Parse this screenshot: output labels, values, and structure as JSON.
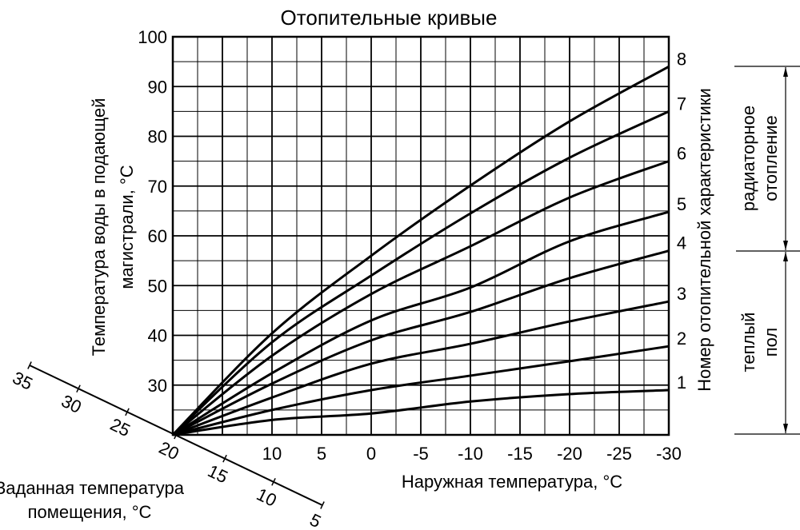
{
  "chart_data": {
    "type": "line",
    "title": "Отопительные кривые",
    "xlabel": "Наружная температура, °C",
    "ylabel_lines": [
      "Температура воды в подающей",
      "магистрали, °C"
    ],
    "xlim": [
      20,
      -30
    ],
    "ylim": [
      20,
      100
    ],
    "grid": true,
    "x_tick_labels": [
      "10",
      "5",
      "0",
      "-5",
      "-10",
      "-15",
      "-20",
      "-25",
      "-30"
    ],
    "x_ticks": [
      10,
      5,
      0,
      -5,
      -10,
      -15,
      -20,
      -25,
      -30
    ],
    "y_tick_labels": [
      "30",
      "40",
      "50",
      "60",
      "70",
      "80",
      "90",
      "100"
    ],
    "y_ticks": [
      30,
      40,
      50,
      60,
      70,
      80,
      90,
      100
    ],
    "x": [
      20,
      10,
      0,
      -10,
      -20,
      -30
    ],
    "series": [
      {
        "name": "1",
        "values": [
          20,
          23,
          24.3,
          26.7,
          28.2,
          29
        ]
      },
      {
        "name": "2",
        "values": [
          20,
          25,
          29,
          31.9,
          34.8,
          37.8
        ]
      },
      {
        "name": "3",
        "values": [
          20,
          27.5,
          34.3,
          38.3,
          42.8,
          46.8
        ]
      },
      {
        "name": "4",
        "values": [
          20,
          30.3,
          39,
          44.7,
          51.5,
          57
        ]
      },
      {
        "name": "5",
        "values": [
          20,
          32.4,
          43,
          49.6,
          58.9,
          64.8
        ]
      },
      {
        "name": "6",
        "values": [
          20,
          35.9,
          48.3,
          57.9,
          67.7,
          75
        ]
      },
      {
        "name": "7",
        "values": [
          20,
          38.6,
          52,
          64.5,
          75.7,
          85
        ]
      },
      {
        "name": "8",
        "values": [
          20,
          40.4,
          56,
          70.1,
          83,
          94
        ]
      }
    ],
    "right_axis_label": "Номер отопительной характеристики",
    "room_axis": {
      "label_lines": [
        "Заданная температура",
        "помещения, °C"
      ],
      "tick_labels": [
        "35",
        "30",
        "25",
        "20",
        "15",
        "10",
        "5"
      ]
    },
    "ranges": [
      {
        "label_lines": [
          "радиаторное",
          "отопление"
        ]
      },
      {
        "label_lines": [
          "теплый",
          "пол"
        ]
      }
    ],
    "colors": {
      "line": "#000000",
      "background": "#ffffff"
    }
  }
}
